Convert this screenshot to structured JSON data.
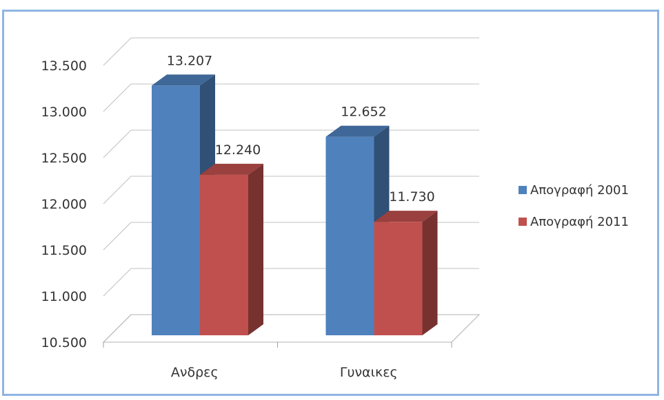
{
  "chart_data": {
    "type": "bar",
    "style": "3d-clustered-column",
    "categories": [
      "Ανδρες",
      "Γυναικες"
    ],
    "series": [
      {
        "name": "Απογραφή 2001",
        "values": [
          13207,
          12652
        ],
        "labels": [
          "13.207",
          "12.652"
        ],
        "color": "#4f81bd"
      },
      {
        "name": "Απογραφή 2011",
        "values": [
          12240,
          11730
        ],
        "labels": [
          "12.240",
          "11.730"
        ],
        "color": "#c0504d"
      }
    ],
    "ylim": [
      10500,
      13500
    ],
    "yticks": [
      10500,
      11000,
      11500,
      12000,
      12500,
      13000,
      13500
    ],
    "ytick_labels": [
      "10.500",
      "11.000",
      "11.500",
      "12.000",
      "12.500",
      "13.000",
      "13.500"
    ],
    "grid": true,
    "legend_position": "right",
    "title": "",
    "xlabel": "",
    "ylabel": ""
  }
}
